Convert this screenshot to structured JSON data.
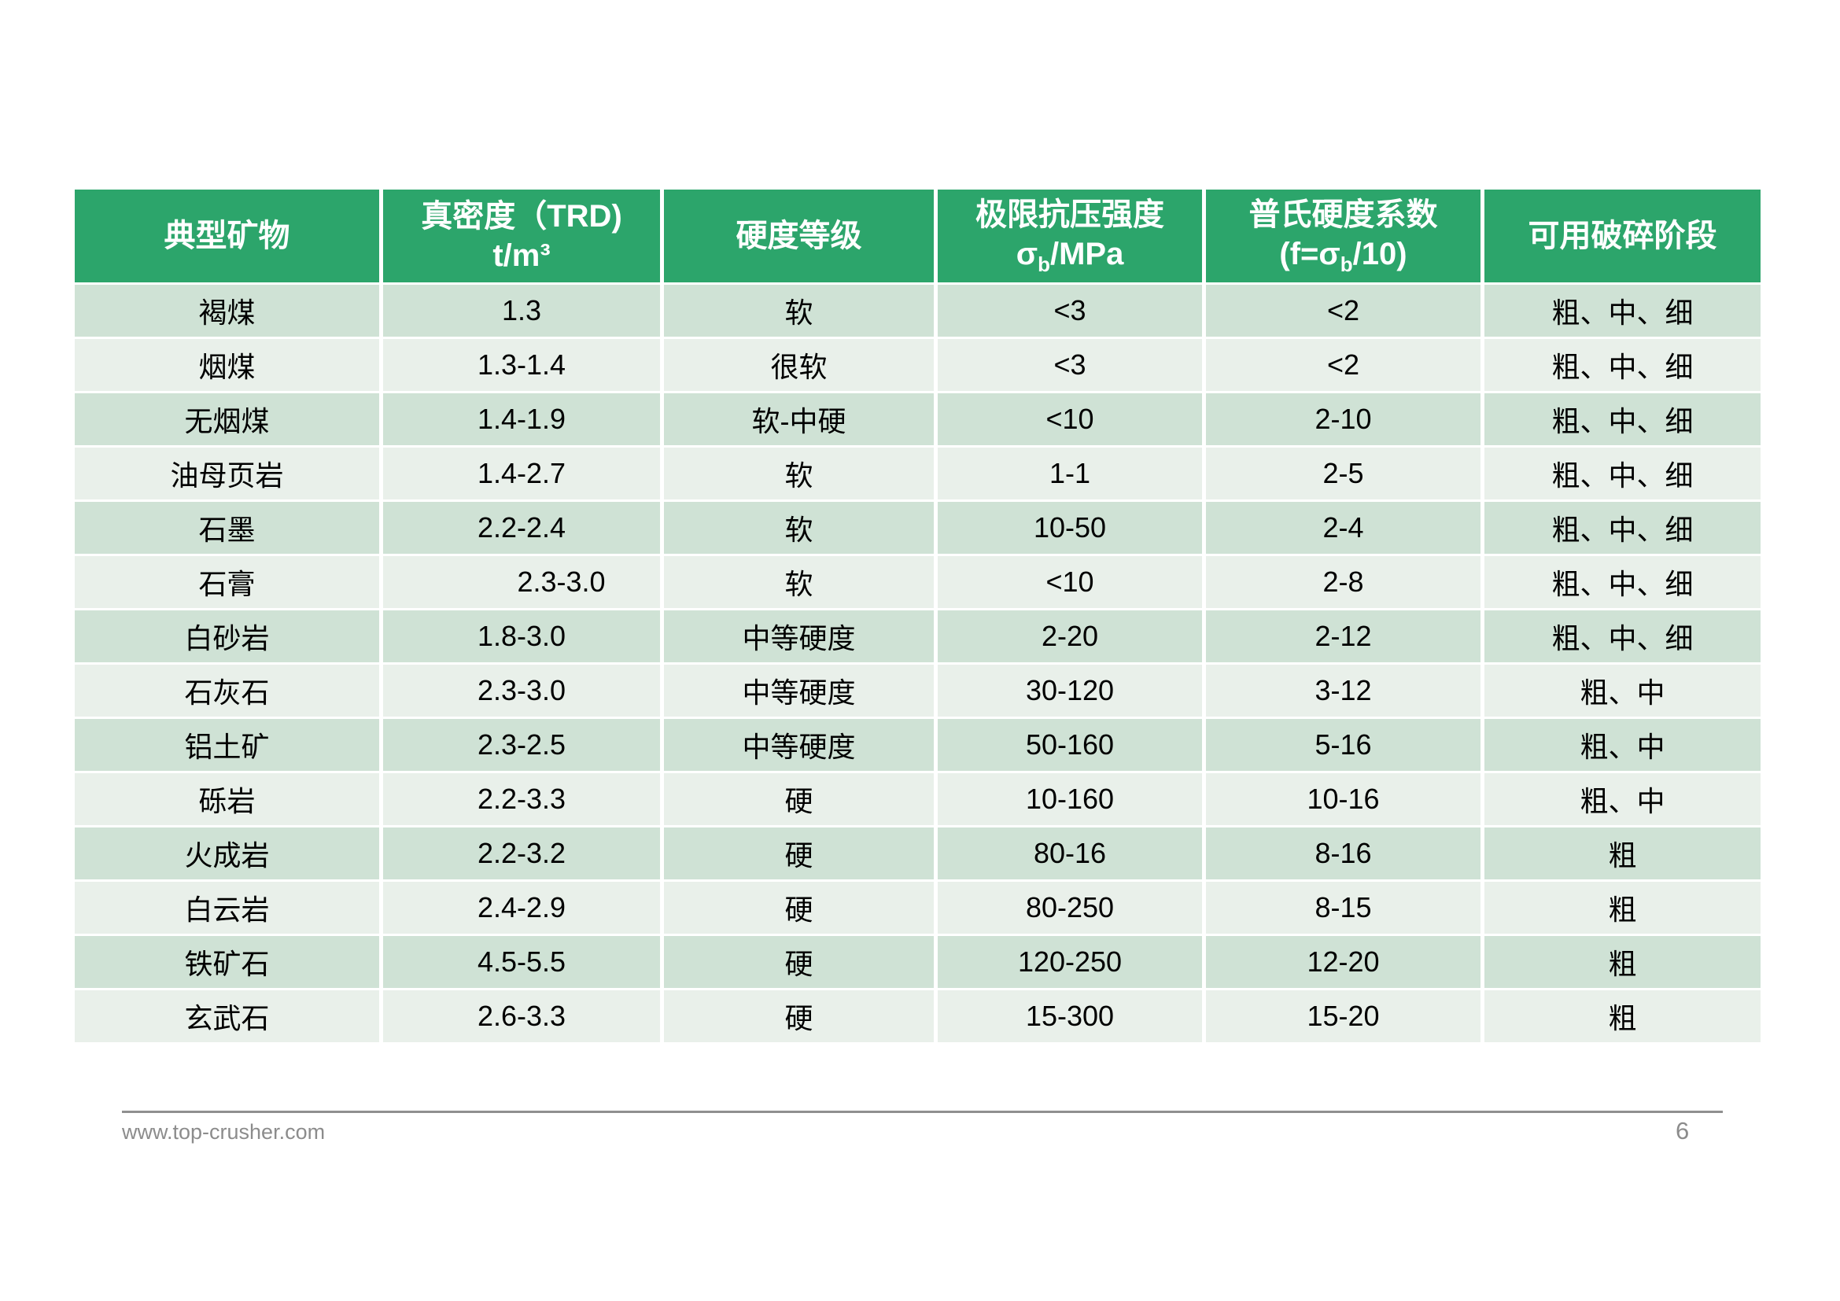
{
  "colors": {
    "header_green": "#2ca56b",
    "row_dark": "#cfe2d5",
    "row_light": "#e9f0ea",
    "page_bg": "#ffffff"
  },
  "table": {
    "columns": [
      {
        "id": "mineral",
        "lines": [
          {
            "text": "典型矿物"
          }
        ]
      },
      {
        "id": "density",
        "lines": [
          {
            "text": "真密度（TRD)"
          },
          {
            "text": "t/m³"
          }
        ]
      },
      {
        "id": "hardness",
        "lines": [
          {
            "text": "硬度等级"
          }
        ]
      },
      {
        "id": "strength",
        "lines": [
          {
            "text": "极限抗压强度"
          },
          {
            "pre": "σ",
            "sub": "b",
            "post": "/MPa"
          }
        ]
      },
      {
        "id": "coefficient",
        "lines": [
          {
            "text": "普氏硬度系数"
          },
          {
            "pre": "(f=σ",
            "sub": "b",
            "post": "/10)"
          }
        ]
      },
      {
        "id": "stages",
        "lines": [
          {
            "text": "可用破碎阶段"
          }
        ]
      }
    ],
    "rows": [
      {
        "mineral": "褐煤",
        "density": "1.3",
        "hardness": "软",
        "strength": "<3",
        "coefficient": "<2",
        "stages": "粗、中、细"
      },
      {
        "mineral": "烟煤",
        "density": "1.3-1.4",
        "hardness": "很软",
        "strength": "<3",
        "coefficient": "<2",
        "stages": "粗、中、细"
      },
      {
        "mineral": "无烟煤",
        "density": "1.4-1.9",
        "hardness": "软-中硬",
        "strength": "<10",
        "coefficient": "2-10",
        "stages": "粗、中、细"
      },
      {
        "mineral": "油母页岩",
        "density": "1.4-2.7",
        "hardness": "软",
        "strength": "1-1",
        "coefficient": "2-5",
        "stages": "粗、中、细"
      },
      {
        "mineral": "石墨",
        "density": "2.2-2.4",
        "hardness": "软",
        "strength": "10-50",
        "coefficient": "2-4",
        "stages": "粗、中、细"
      },
      {
        "mineral": "石膏",
        "density": "2.3-3.0",
        "density_indent": true,
        "hardness": "软",
        "strength": "<10",
        "coefficient": "2-8",
        "stages": "粗、中、细"
      },
      {
        "mineral": "白砂岩",
        "density": "1.8-3.0",
        "hardness": "中等硬度",
        "strength": "2-20",
        "coefficient": "2-12",
        "stages": "粗、中、细"
      },
      {
        "mineral": "石灰石",
        "density": "2.3-3.0",
        "hardness": "中等硬度",
        "strength": "30-120",
        "coefficient": "3-12",
        "stages": "粗、中"
      },
      {
        "mineral": "铝土矿",
        "density": "2.3-2.5",
        "hardness": "中等硬度",
        "strength": "50-160",
        "coefficient": "5-16",
        "stages": "粗、中"
      },
      {
        "mineral": "砾岩",
        "density": "2.2-3.3",
        "hardness": "硬",
        "strength": "10-160",
        "coefficient": "10-16",
        "stages": "粗、中"
      },
      {
        "mineral": "火成岩",
        "density": "2.2-3.2",
        "hardness": "硬",
        "strength": "80-16",
        "coefficient": "8-16",
        "stages": "粗"
      },
      {
        "mineral": "白云岩",
        "density": "2.4-2.9",
        "hardness": "硬",
        "strength": "80-250",
        "coefficient": "8-15",
        "stages": "粗"
      },
      {
        "mineral": "铁矿石",
        "density": "4.5-5.5",
        "hardness": "硬",
        "strength": "120-250",
        "coefficient": "12-20",
        "stages": "粗"
      },
      {
        "mineral": "玄武石",
        "density": "2.6-3.3",
        "hardness": "硬",
        "strength": "15-300",
        "coefficient": "15-20",
        "stages": "粗"
      }
    ]
  },
  "footer": {
    "website": "www.top-crusher.com",
    "page_number": "6"
  }
}
